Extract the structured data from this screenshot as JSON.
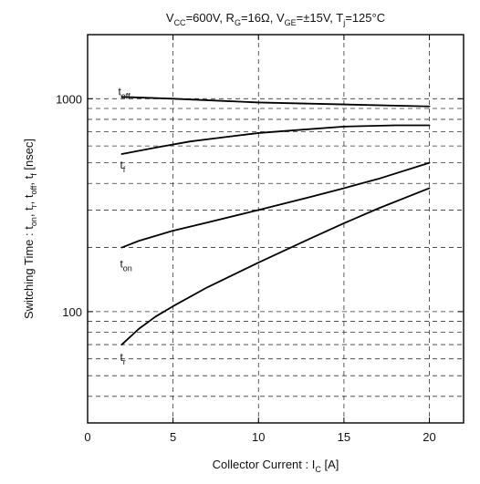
{
  "chart_data": {
    "type": "line",
    "title": {
      "parts": [
        {
          "t": "V"
        },
        {
          "t": "CC",
          "sub": true
        },
        {
          "t": "=600V, R"
        },
        {
          "t": "G",
          "sub": true
        },
        {
          "t": "=16Ω, V"
        },
        {
          "t": "GE",
          "sub": true
        },
        {
          "t": "=±15V, T"
        },
        {
          "t": "j",
          "sub": true
        },
        {
          "t": "=125°C"
        }
      ]
    },
    "xlabel": {
      "parts": [
        {
          "t": "Collector Current  :  I"
        },
        {
          "t": "C",
          "sub": true
        },
        {
          "t": "  [A]"
        }
      ]
    },
    "ylabel": {
      "parts": [
        {
          "t": "Switching Time  :  t"
        },
        {
          "t": "on",
          "sub": true
        },
        {
          "t": ", t"
        },
        {
          "t": "r",
          "sub": true
        },
        {
          "t": ", t"
        },
        {
          "t": "off",
          "sub": true
        },
        {
          "t": ", t"
        },
        {
          "t": "f",
          "sub": true
        },
        {
          "t": "  [nsec]"
        }
      ]
    },
    "xlim": [
      0,
      22
    ],
    "ylim": [
      30,
      2000
    ],
    "yscale": "log",
    "x_ticks": [
      0,
      5,
      10,
      15,
      20
    ],
    "y_tick_labels": [
      {
        "value": 100,
        "label": "100"
      },
      {
        "value": 1000,
        "label": "1000"
      }
    ],
    "grid": "dashed",
    "series": [
      {
        "name": "t_off",
        "label": {
          "main": "t",
          "sub": "off"
        },
        "x": [
          2,
          5,
          10,
          15,
          20
        ],
        "y": [
          1020,
          1000,
          960,
          940,
          920
        ]
      },
      {
        "name": "t_f",
        "label": {
          "main": "t",
          "sub": "f"
        },
        "x": [
          2,
          4,
          6,
          8,
          10,
          12,
          15,
          18,
          20
        ],
        "y": [
          550,
          590,
          630,
          660,
          690,
          710,
          740,
          750,
          750
        ]
      },
      {
        "name": "t_on",
        "label": {
          "main": "t",
          "sub": "on"
        },
        "x": [
          2,
          3,
          5,
          7,
          10,
          13,
          15,
          17,
          20
        ],
        "y": [
          200,
          215,
          240,
          262,
          300,
          345,
          380,
          420,
          500
        ]
      },
      {
        "name": "t_r",
        "label": {
          "main": "t",
          "sub": "r"
        },
        "x": [
          2,
          3,
          4,
          5,
          7,
          10,
          13,
          15,
          17,
          20
        ],
        "y": [
          70,
          83,
          95,
          106,
          130,
          170,
          220,
          260,
          305,
          380
        ]
      }
    ]
  }
}
